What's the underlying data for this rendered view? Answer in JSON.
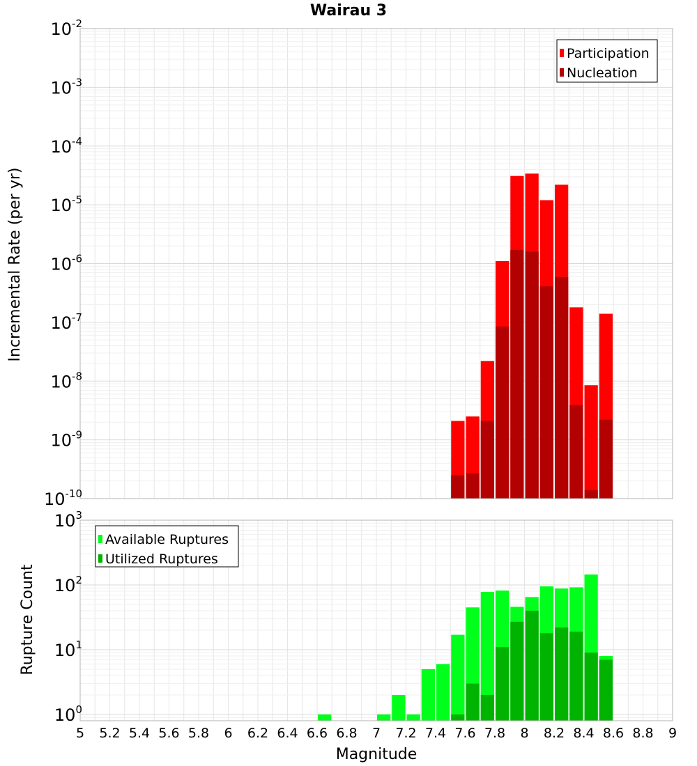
{
  "title": "Wairau 3",
  "colors": {
    "participation": "#ff0000",
    "nucleation": "#b30000",
    "available": "#00ff1a",
    "utilized": "#00b300",
    "grid": "#e6e6e6",
    "frame": "#b3b3b3"
  },
  "chart_data": [
    {
      "type": "bar",
      "title": "Wairau 3",
      "ylabel": "Incremental Rate (per yr)",
      "xlabel": "",
      "xlim": [
        5,
        9
      ],
      "ylim": [
        1e-10,
        0.01
      ],
      "yscale": "log",
      "grid": true,
      "legend_position": "top-right",
      "y_tick_labels": [
        {
          "base": "10",
          "exp": "-10"
        },
        {
          "base": "10",
          "exp": "-9"
        },
        {
          "base": "10",
          "exp": "-8"
        },
        {
          "base": "10",
          "exp": "-7"
        },
        {
          "base": "10",
          "exp": "-6"
        },
        {
          "base": "10",
          "exp": "-5"
        },
        {
          "base": "10",
          "exp": "-4"
        },
        {
          "base": "10",
          "exp": "-3"
        },
        {
          "base": "10",
          "exp": "-2"
        }
      ],
      "x": [
        7.55,
        7.65,
        7.75,
        7.85,
        7.95,
        8.05,
        8.15,
        8.25,
        8.35,
        8.45,
        8.55
      ],
      "series": [
        {
          "name": "Participation",
          "color": "#ff0000",
          "values": [
            2.1e-09,
            2.5e-09,
            2.2e-08,
            1.1e-06,
            3.1e-05,
            3.4e-05,
            1.2e-05,
            2.2e-05,
            1.8e-07,
            8.5e-09,
            1.4e-07
          ]
        },
        {
          "name": "Nucleation",
          "color": "#b30000",
          "values": [
            2.5e-10,
            2.7e-10,
            2.1e-09,
            8.5e-08,
            1.7e-06,
            1.6e-06,
            4.1e-07,
            5.9e-07,
            3.9e-09,
            1.4e-10,
            2.2e-09
          ]
        }
      ]
    },
    {
      "type": "bar",
      "title": "",
      "ylabel": "Rupture Count",
      "xlabel": "Magnitude",
      "xlim": [
        5,
        9
      ],
      "ylim": [
        0.8,
        1000
      ],
      "yscale": "log",
      "grid": true,
      "legend_position": "top-left",
      "y_tick_labels": [
        {
          "base": "10",
          "exp": "0"
        },
        {
          "base": "10",
          "exp": "1"
        },
        {
          "base": "10",
          "exp": "2"
        },
        {
          "base": "10",
          "exp": "3"
        }
      ],
      "x_tick_labels": [
        "5",
        "5.2",
        "5.4",
        "5.6",
        "5.8",
        "6",
        "6.2",
        "6.4",
        "6.6",
        "6.8",
        "7",
        "7.2",
        "7.4",
        "7.6",
        "7.8",
        "8",
        "8.2",
        "8.4",
        "8.6",
        "8.8",
        "9"
      ],
      "x": [
        6.65,
        7.05,
        7.15,
        7.25,
        7.35,
        7.45,
        7.55,
        7.65,
        7.75,
        7.85,
        7.95,
        8.05,
        8.15,
        8.25,
        8.35,
        8.45,
        8.55
      ],
      "series": [
        {
          "name": "Available Ruptures",
          "color": "#00ff1a",
          "values": [
            1,
            1,
            2,
            1,
            5,
            6,
            17,
            45,
            78,
            82,
            46,
            65,
            95,
            88,
            92,
            145,
            8
          ]
        },
        {
          "name": "Utilized Ruptures",
          "color": "#00b300",
          "values": [
            0,
            0,
            0,
            0,
            0,
            0,
            1,
            3,
            2,
            11,
            27,
            40,
            18,
            22,
            19,
            9,
            7
          ]
        }
      ]
    }
  ]
}
